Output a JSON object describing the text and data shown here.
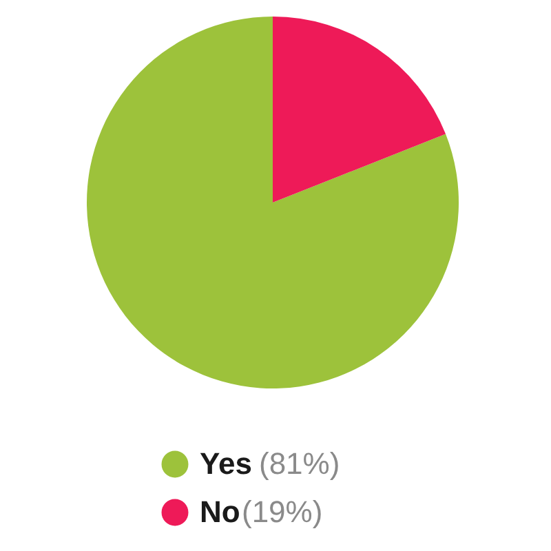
{
  "chart_data": {
    "type": "pie",
    "categories": [
      "Yes",
      "No"
    ],
    "values": [
      81,
      19
    ],
    "colors": [
      "#9dc23b",
      "#ee1a58"
    ],
    "value_labels": [
      "(81%)",
      "(19%)"
    ],
    "legend": "bottom"
  }
}
